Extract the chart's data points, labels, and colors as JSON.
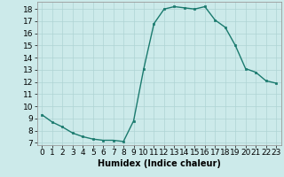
{
  "x": [
    0,
    1,
    2,
    3,
    4,
    5,
    6,
    7,
    8,
    9,
    10,
    11,
    12,
    13,
    14,
    15,
    16,
    17,
    18,
    19,
    20,
    21,
    22,
    23
  ],
  "y": [
    9.3,
    8.7,
    8.3,
    7.8,
    7.5,
    7.3,
    7.2,
    7.2,
    7.1,
    8.8,
    13.1,
    16.8,
    18.0,
    18.2,
    18.1,
    18.0,
    18.2,
    17.1,
    16.5,
    15.0,
    13.1,
    12.8,
    12.1,
    11.9
  ],
  "line_color": "#1a7a6e",
  "marker": "s",
  "marker_size": 2,
  "bg_color": "#cceaea",
  "grid_color": "#aed4d4",
  "xlabel": "Humidex (Indice chaleur)",
  "xlabel_fontsize": 7,
  "xlim": [
    -0.5,
    23.5
  ],
  "ylim": [
    6.8,
    18.6
  ],
  "yticks": [
    7,
    8,
    9,
    10,
    11,
    12,
    13,
    14,
    15,
    16,
    17,
    18
  ],
  "xticks": [
    0,
    1,
    2,
    3,
    4,
    5,
    6,
    7,
    8,
    9,
    10,
    11,
    12,
    13,
    14,
    15,
    16,
    17,
    18,
    19,
    20,
    21,
    22,
    23
  ],
  "tick_fontsize": 6.5
}
